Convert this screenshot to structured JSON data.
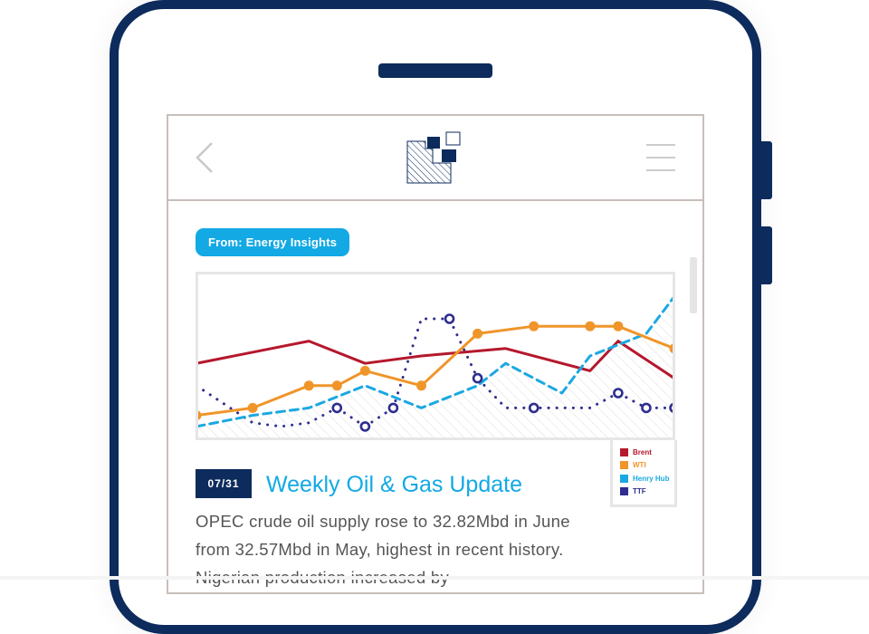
{
  "colors": {
    "frame": "#0d2b5c",
    "accent": "#12a9e5",
    "brent": "#b5182d",
    "wti": "#f0952a",
    "henry_hub": "#1aa8e2",
    "ttf": "#2e2e8f"
  },
  "header": {
    "back_icon": "chevron-left-icon",
    "menu_icon": "hamburger-menu-icon",
    "logo": "company-logo"
  },
  "source_badge": "From: Energy Insights",
  "article": {
    "date": "07/31",
    "title": "Weekly Oil & Gas Update",
    "body": "OPEC crude oil supply rose to 32.82Mbd in June from 32.57Mbd in May, highest in recent history. Nigerian production increased by"
  },
  "chart_data": {
    "type": "line",
    "x": [
      1,
      2,
      3,
      4,
      5,
      6,
      7,
      8,
      9,
      10,
      11,
      12,
      13,
      14,
      15,
      16,
      17,
      18
    ],
    "ylim": [
      0,
      20
    ],
    "series": [
      {
        "name": "Brent",
        "style": "solid",
        "x": [
          1,
          5,
          7,
          9,
          12,
          15,
          16,
          18
        ],
        "values": [
          9,
          12,
          9,
          10,
          11,
          8,
          12,
          7
        ]
      },
      {
        "name": "WTI",
        "style": "solid-markers",
        "x": [
          1,
          3,
          5,
          6,
          7,
          9,
          11,
          13,
          15,
          16,
          18
        ],
        "values": [
          2,
          3,
          6,
          6,
          8,
          6,
          13,
          14,
          14,
          14,
          11
        ]
      },
      {
        "name": "Henry Hub",
        "style": "dashed",
        "x": [
          1,
          3,
          5,
          7,
          9,
          11,
          12,
          13,
          14,
          15,
          17,
          18
        ],
        "values": [
          0.5,
          2,
          3,
          6,
          3,
          6,
          9,
          7,
          5,
          10,
          13,
          18
        ]
      },
      {
        "name": "TTF",
        "style": "dotted-open-markers",
        "x": [
          1,
          3,
          4,
          5,
          6,
          7,
          8,
          9,
          10,
          11,
          12,
          13,
          14,
          15,
          16,
          17,
          18
        ],
        "values": [
          6,
          1,
          0.5,
          1,
          3,
          0.5,
          3,
          15,
          15,
          7,
          3,
          3,
          3,
          3,
          5,
          3,
          3
        ]
      }
    ],
    "legend": {
      "position": "bottom-right",
      "entries": [
        "Brent",
        "WTI",
        "Henry Hub",
        "TTF"
      ]
    }
  }
}
